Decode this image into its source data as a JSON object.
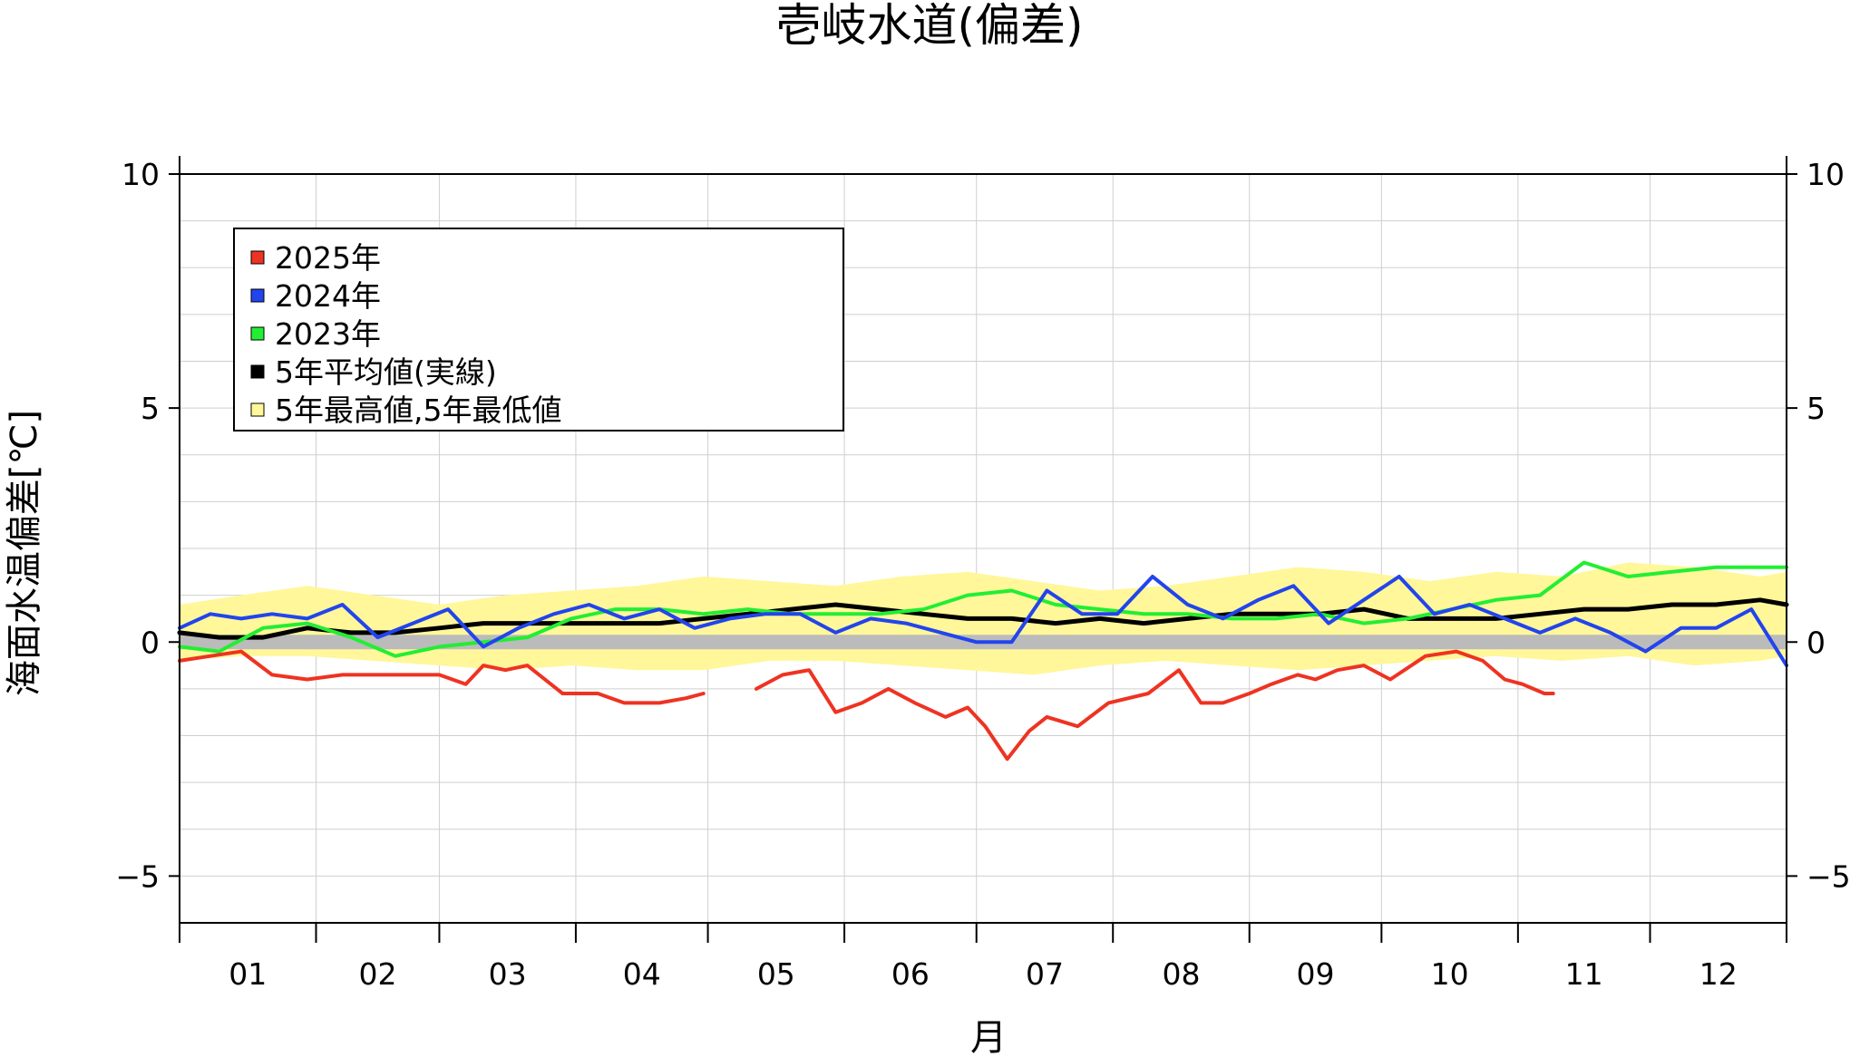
{
  "chart_data": {
    "type": "line",
    "title": "壱岐水道(偏差)",
    "xlabel": "月",
    "ylabel": "海面水温偏差[℃]",
    "ylim": [
      -6,
      10
    ],
    "yticks": [
      -5,
      0,
      5,
      10
    ],
    "xlim": [
      1,
      366
    ],
    "grid": true,
    "legend_position": "top-left",
    "month_ticks": [
      "01",
      "02",
      "03",
      "04",
      "05",
      "06",
      "07",
      "08",
      "09",
      "10",
      "11",
      "12"
    ],
    "colors": {
      "y2025": "#ee3322",
      "y2024": "#2244ee",
      "y2023": "#22ee33",
      "avg": "#000000",
      "band": "#fff799",
      "zero": "#bbbbbb"
    },
    "legend": [
      {
        "label": "2025年",
        "color": "#ee3322"
      },
      {
        "label": "2024年",
        "color": "#2244ee"
      },
      {
        "label": "2023年",
        "color": "#22ee33"
      },
      {
        "label": "5年平均値(実線)",
        "color": "#000000"
      },
      {
        "label": "5年最高値,5年最低値",
        "color": "#fff799"
      }
    ],
    "series": [
      {
        "name": "2025年",
        "x": [
          1,
          8,
          15,
          22,
          30,
          38,
          46,
          54,
          60,
          66,
          70,
          75,
          80,
          88,
          96,
          102,
          110,
          116,
          120,
          126,
          132,
          138,
          144,
          150,
          156,
          162,
          168,
          175,
          180,
          184,
          189,
          194,
          198,
          205,
          212,
          221,
          228,
          233,
          238,
          244,
          249,
          252,
          255,
          259,
          264,
          270,
          276,
          284,
          291,
          297,
          302,
          306,
          311,
          313
        ],
        "y": [
          -0.4,
          -0.3,
          -0.2,
          -0.7,
          -0.8,
          -0.7,
          -0.7,
          -0.7,
          -0.7,
          -0.9,
          -0.5,
          -0.6,
          -0.5,
          -1.1,
          -1.1,
          -1.3,
          -1.3,
          -1.2,
          -1.1,
          null,
          -1.0,
          -0.7,
          -0.6,
          -1.5,
          -1.3,
          -1.0,
          -1.3,
          -1.6,
          -1.4,
          -1.8,
          -2.5,
          -1.9,
          -1.6,
          -1.8,
          -1.3,
          -1.1,
          -0.6,
          -1.3,
          -1.3,
          -1.1,
          -0.9,
          -0.8,
          -0.7,
          -0.8,
          -0.6,
          -0.5,
          -0.8,
          -0.3,
          -0.2,
          -0.4,
          -0.8,
          -0.9,
          -1.1,
          -1.1
        ]
      },
      {
        "name": "2024年",
        "x": [
          1,
          8,
          15,
          22,
          30,
          38,
          46,
          54,
          62,
          70,
          78,
          86,
          94,
          102,
          110,
          118,
          126,
          134,
          142,
          150,
          158,
          166,
          174,
          182,
          190,
          198,
          206,
          214,
          222,
          230,
          238,
          246,
          254,
          262,
          270,
          278,
          286,
          294,
          302,
          310,
          318,
          326,
          334,
          342,
          350,
          358,
          366
        ],
        "y": [
          0.3,
          0.6,
          0.5,
          0.6,
          0.5,
          0.8,
          0.1,
          0.4,
          0.7,
          -0.1,
          0.3,
          0.6,
          0.8,
          0.5,
          0.7,
          0.3,
          0.5,
          0.6,
          0.6,
          0.2,
          0.5,
          0.4,
          0.2,
          0.0,
          0.0,
          1.1,
          0.6,
          0.6,
          1.4,
          0.8,
          0.5,
          0.9,
          1.2,
          0.4,
          0.9,
          1.4,
          0.6,
          0.8,
          0.5,
          0.2,
          0.5,
          0.2,
          -0.2,
          0.3,
          0.3,
          0.7,
          -0.5
        ]
      },
      {
        "name": "2023年",
        "x": [
          1,
          10,
          20,
          30,
          40,
          50,
          60,
          70,
          80,
          90,
          100,
          110,
          120,
          130,
          140,
          150,
          160,
          170,
          180,
          190,
          200,
          210,
          220,
          230,
          240,
          250,
          260,
          270,
          280,
          290,
          300,
          310,
          320,
          330,
          340,
          350,
          360,
          366
        ],
        "y": [
          -0.1,
          -0.2,
          0.3,
          0.4,
          0.1,
          -0.3,
          -0.1,
          0.0,
          0.1,
          0.5,
          0.7,
          0.7,
          0.6,
          0.7,
          0.6,
          0.6,
          0.6,
          0.7,
          1.0,
          1.1,
          0.8,
          0.7,
          0.6,
          0.6,
          0.5,
          0.5,
          0.6,
          0.4,
          0.5,
          0.7,
          0.9,
          1.0,
          1.7,
          1.4,
          1.5,
          1.6,
          1.6,
          1.6
        ]
      },
      {
        "name": "5年平均値(実線)",
        "x": [
          1,
          10,
          20,
          30,
          40,
          50,
          60,
          70,
          80,
          90,
          100,
          110,
          120,
          130,
          140,
          150,
          160,
          170,
          180,
          190,
          200,
          210,
          220,
          230,
          240,
          250,
          260,
          270,
          280,
          290,
          300,
          310,
          320,
          330,
          340,
          350,
          360,
          366
        ],
        "y": [
          0.2,
          0.1,
          0.1,
          0.3,
          0.2,
          0.2,
          0.3,
          0.4,
          0.4,
          0.4,
          0.4,
          0.4,
          0.5,
          0.6,
          0.7,
          0.8,
          0.7,
          0.6,
          0.5,
          0.5,
          0.4,
          0.5,
          0.4,
          0.5,
          0.6,
          0.6,
          0.6,
          0.7,
          0.5,
          0.5,
          0.5,
          0.6,
          0.7,
          0.7,
          0.8,
          0.8,
          0.9,
          0.8
        ]
      },
      {
        "name": "5年最高値,5年最低値",
        "x": [
          1,
          15,
          30,
          45,
          60,
          75,
          90,
          105,
          120,
          135,
          150,
          165,
          180,
          195,
          210,
          225,
          240,
          255,
          270,
          285,
          300,
          315,
          330,
          345,
          360,
          366
        ],
        "y_high": [
          0.8,
          1.0,
          1.2,
          1.0,
          0.8,
          1.0,
          1.1,
          1.2,
          1.4,
          1.3,
          1.2,
          1.4,
          1.5,
          1.3,
          1.1,
          1.2,
          1.4,
          1.6,
          1.5,
          1.3,
          1.5,
          1.4,
          1.7,
          1.6,
          1.4,
          1.5
        ],
        "y_low": [
          -0.4,
          -0.3,
          -0.3,
          -0.4,
          -0.5,
          -0.6,
          -0.5,
          -0.6,
          -0.6,
          -0.4,
          -0.4,
          -0.5,
          -0.6,
          -0.7,
          -0.5,
          -0.4,
          -0.5,
          -0.6,
          -0.5,
          -0.4,
          -0.3,
          -0.4,
          -0.3,
          -0.5,
          -0.4,
          -0.3
        ]
      }
    ]
  }
}
